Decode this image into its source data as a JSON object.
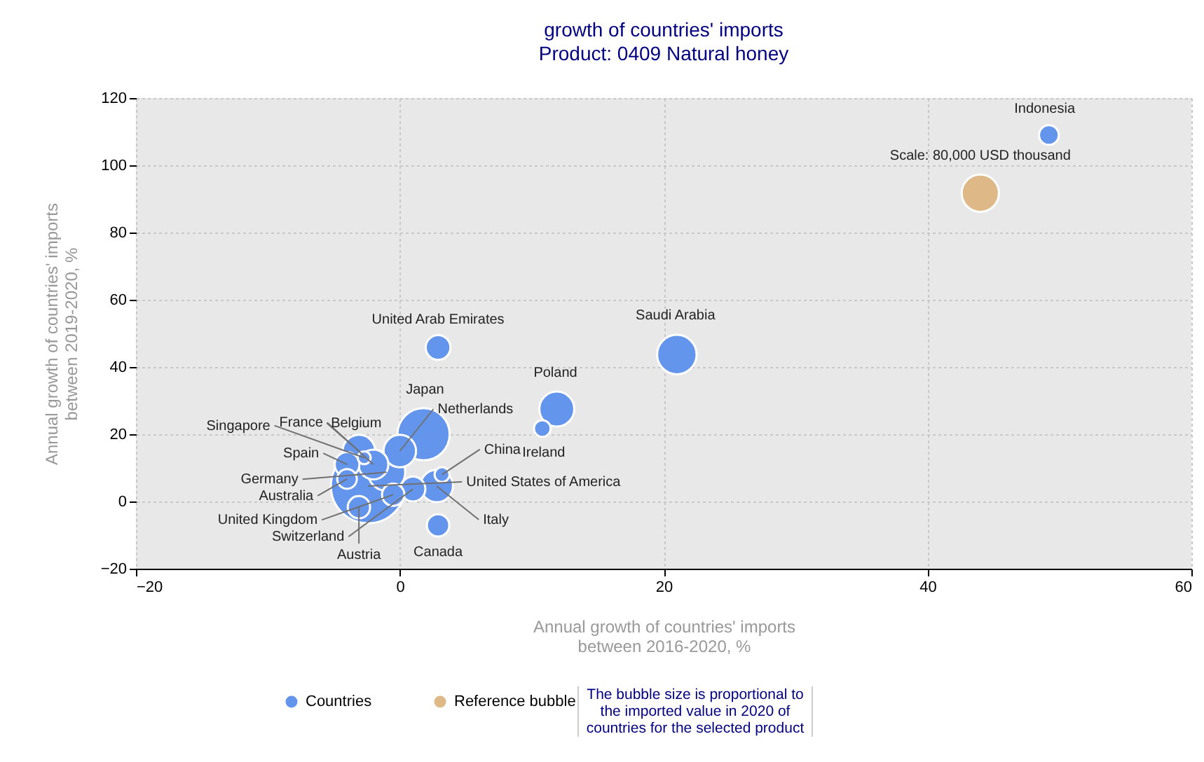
{
  "chart_data": {
    "type": "bubble",
    "title": "growth of countries' imports",
    "subtitle": "Product: 0409 Natural honey",
    "xlabel": "Annual growth of countries' imports\nbetween 2016-2020, %",
    "ylabel": "Annual growth of countries' imports\nbetween 2019-2020, %",
    "xlim": [
      -20,
      60
    ],
    "xticks": [
      -20,
      0,
      20,
      40,
      60
    ],
    "ylim": [
      -20,
      120
    ],
    "yticks": [
      -20,
      0,
      20,
      40,
      60,
      80,
      100,
      120
    ],
    "grid": true,
    "legend": "bottom",
    "series": [
      {
        "name": "Countries",
        "color": "#6495ed",
        "x": [
          49.2,
          2.9,
          21,
          11.9,
          10.8,
          1.8,
          0,
          -3.1,
          -2.7,
          -2,
          -4,
          -4,
          -1,
          -2.4,
          -0.5,
          -3.1,
          1,
          2.8,
          3.2,
          2.9
        ],
        "values": [
          109,
          45.8,
          43.7,
          27.5,
          21.7,
          20,
          15,
          15,
          13,
          11,
          11,
          6.7,
          8.7,
          4.6,
          2,
          -1.7,
          3.7,
          4.6,
          8,
          -7.1
        ],
        "sizes": [
          0.07,
          0.11,
          0.28,
          0.22,
          0.05,
          0.49,
          0.19,
          0.19,
          0.03,
          0.16,
          0.11,
          0.07,
          0.25,
          1,
          0.09,
          0.09,
          0.11,
          0.19,
          0.04,
          0.09
        ]
      },
      {
        "name": "Reference bubble",
        "color": "#deb887",
        "x": [
          44
        ],
        "values": [
          91.7
        ],
        "sizes": [
          0.25
        ]
      }
    ],
    "annotations": [
      {
        "text": "Indonesia",
        "x": 49.2,
        "y": 109
      },
      {
        "text": "United Arab Emirates",
        "x": 2.9,
        "y": 45.8
      },
      {
        "text": "Saudi Arabia",
        "x": 21,
        "y": 43.7
      },
      {
        "text": "Poland",
        "x": 11.9,
        "y": 27.5
      },
      {
        "text": "Ireland",
        "x": 10.8,
        "y": 21.7
      },
      {
        "text": "Japan",
        "x": 1.8,
        "y": 20
      },
      {
        "text": "Netherlands",
        "x": 0,
        "y": 15
      },
      {
        "text": "Belgium",
        "x": -3.1,
        "y": 15
      },
      {
        "text": "Singapore",
        "x": -2.7,
        "y": 13
      },
      {
        "text": "France",
        "x": -2,
        "y": 11
      },
      {
        "text": "Spain",
        "x": -4,
        "y": 11
      },
      {
        "text": "Australia",
        "x": -4,
        "y": 6.7
      },
      {
        "text": "Germany",
        "x": -1,
        "y": 8.7
      },
      {
        "text": "United States of America",
        "x": -2.4,
        "y": 4.6
      },
      {
        "text": "United Kingdom",
        "x": -0.5,
        "y": 2
      },
      {
        "text": "Austria",
        "x": -3.1,
        "y": -1.7
      },
      {
        "text": "Switzerland",
        "x": 1,
        "y": 3.7
      },
      {
        "text": "Italy",
        "x": 2.8,
        "y": 4.6
      },
      {
        "text": "China",
        "x": 3.2,
        "y": 8
      },
      {
        "text": "Canada",
        "x": 2.9,
        "y": -7.1
      },
      {
        "text": "Scale: 80,000 USD thousand",
        "x": 44,
        "y": 91.7
      },
      "The bubble size is proportional to the imported value in 2020 of countries for the selected product"
    ]
  }
}
